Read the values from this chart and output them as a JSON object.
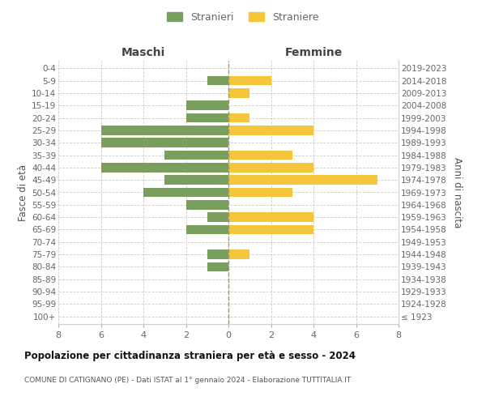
{
  "age_groups": [
    "100+",
    "95-99",
    "90-94",
    "85-89",
    "80-84",
    "75-79",
    "70-74",
    "65-69",
    "60-64",
    "55-59",
    "50-54",
    "45-49",
    "40-44",
    "35-39",
    "30-34",
    "25-29",
    "20-24",
    "15-19",
    "10-14",
    "5-9",
    "0-4"
  ],
  "birth_years": [
    "≤ 1923",
    "1924-1928",
    "1929-1933",
    "1934-1938",
    "1939-1943",
    "1944-1948",
    "1949-1953",
    "1954-1958",
    "1959-1963",
    "1964-1968",
    "1969-1973",
    "1974-1978",
    "1979-1983",
    "1984-1988",
    "1989-1993",
    "1994-1998",
    "1999-2003",
    "2004-2008",
    "2009-2013",
    "2014-2018",
    "2019-2023"
  ],
  "maschi": [
    0,
    0,
    0,
    0,
    1,
    1,
    0,
    2,
    1,
    2,
    4,
    3,
    6,
    3,
    6,
    6,
    2,
    2,
    0,
    1,
    0
  ],
  "femmine": [
    0,
    0,
    0,
    0,
    0,
    1,
    0,
    4,
    4,
    0,
    3,
    7,
    4,
    3,
    0,
    4,
    1,
    0,
    1,
    2,
    0
  ],
  "maschi_color": "#7a9e5e",
  "femmine_color": "#f5c53c",
  "maschi_label": "Stranieri",
  "femmine_label": "Straniere",
  "title": "Popolazione per cittadinanza straniera per età e sesso - 2024",
  "subtitle": "COMUNE DI CATIGNANO (PE) - Dati ISTAT al 1° gennaio 2024 - Elaborazione TUTTITALIA.IT",
  "header_left": "Maschi",
  "header_right": "Femmine",
  "ylabel_left": "Fasce di età",
  "ylabel_right": "Anni di nascita",
  "xlim": 8,
  "xticks": [
    -8,
    -6,
    -4,
    -2,
    0,
    2,
    4,
    6,
    8
  ],
  "bg_color": "#ffffff",
  "grid_color": "#cccccc",
  "bar_height": 0.75,
  "center_line_color": "#999977",
  "tick_label_color": "#666666",
  "header_color": "#444444",
  "title_color": "#111111",
  "subtitle_color": "#555555"
}
